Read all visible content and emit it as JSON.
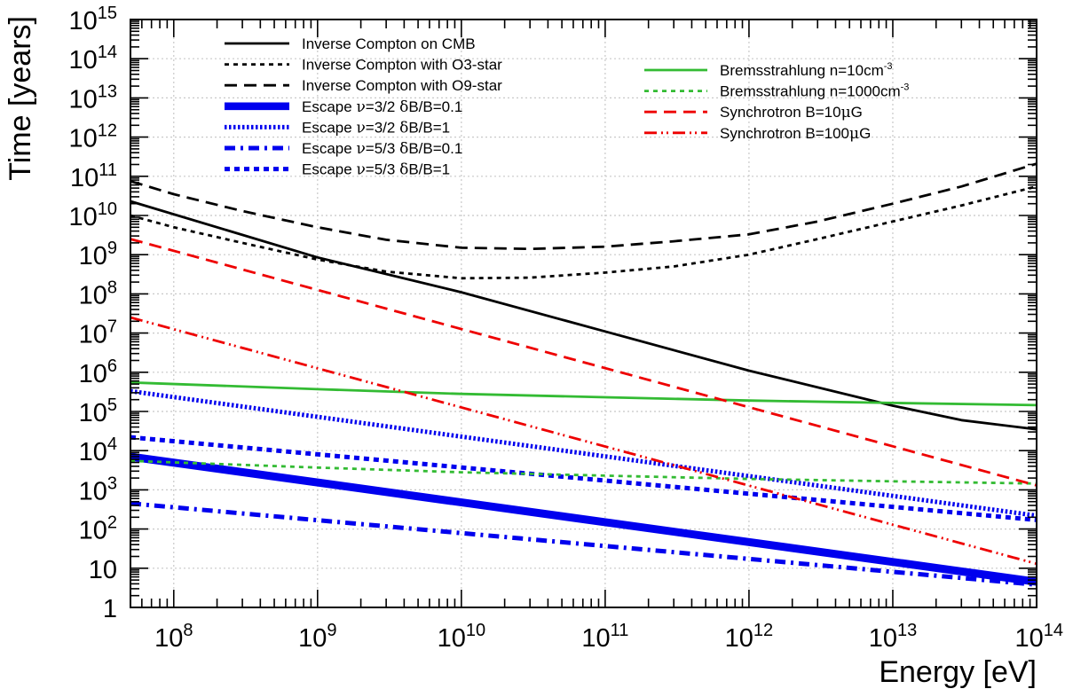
{
  "chart_data": {
    "type": "line",
    "title": "",
    "xlabel": "Energy [eV]",
    "ylabel": "Time [years]",
    "xscale": "log",
    "yscale": "log",
    "xlim": [
      50000000.0,
      100000000000000.0
    ],
    "ylim": [
      1,
      1000000000000000.0
    ],
    "grid": true,
    "x_ticks": [
      {
        "value": 100000000.0,
        "base": "10",
        "exp": "8"
      },
      {
        "value": 1000000000.0,
        "base": "10",
        "exp": "9"
      },
      {
        "value": 10000000000.0,
        "base": "10",
        "exp": "10"
      },
      {
        "value": 100000000000.0,
        "base": "10",
        "exp": "11"
      },
      {
        "value": 1000000000000.0,
        "base": "10",
        "exp": "12"
      },
      {
        "value": 10000000000000.0,
        "base": "10",
        "exp": "13"
      },
      {
        "value": 100000000000000.0,
        "base": "10",
        "exp": "14"
      }
    ],
    "y_ticks": [
      {
        "value": 1,
        "base": "1",
        "exp": ""
      },
      {
        "value": 10,
        "base": "10",
        "exp": ""
      },
      {
        "value": 100.0,
        "base": "10",
        "exp": "2"
      },
      {
        "value": 1000.0,
        "base": "10",
        "exp": "3"
      },
      {
        "value": 10000.0,
        "base": "10",
        "exp": "4"
      },
      {
        "value": 100000.0,
        "base": "10",
        "exp": "5"
      },
      {
        "value": 1000000.0,
        "base": "10",
        "exp": "6"
      },
      {
        "value": 10000000.0,
        "base": "10",
        "exp": "7"
      },
      {
        "value": 100000000.0,
        "base": "10",
        "exp": "8"
      },
      {
        "value": 1000000000.0,
        "base": "10",
        "exp": "9"
      },
      {
        "value": 10000000000.0,
        "base": "10",
        "exp": "10"
      },
      {
        "value": 100000000000.0,
        "base": "10",
        "exp": "11"
      },
      {
        "value": 1000000000000.0,
        "base": "10",
        "exp": "12"
      },
      {
        "value": 10000000000000.0,
        "base": "10",
        "exp": "13"
      },
      {
        "value": 100000000000000.0,
        "base": "10",
        "exp": "14"
      },
      {
        "value": 1000000000000000.0,
        "base": "10",
        "exp": "15"
      }
    ],
    "legend": {
      "left": [
        "ic-cmb",
        "ic-o3",
        "ic-o9",
        "esc-32-01",
        "esc-32-1",
        "esc-53-01",
        "esc-53-1"
      ],
      "right": [
        "brems-10",
        "brems-1000",
        "sync-10",
        "sync-100"
      ]
    },
    "series": [
      {
        "id": "ic-cmb",
        "name": "Inverse Compton on CMB",
        "label": [
          {
            "t": "Inverse Compton on CMB"
          }
        ],
        "color": "#000000",
        "style": "solid",
        "weight": "thin",
        "x": [
          50000000.0,
          1000000000.0,
          10000000000.0,
          100000000000.0,
          1000000000000.0,
          10000000000000.0,
          30000000000000.0,
          100000000000000.0
        ],
        "y": [
          23000000000.0,
          850000000.0,
          110000000.0,
          11000000.0,
          1100000.0,
          140000.0,
          60000.0,
          35000.0
        ]
      },
      {
        "id": "ic-o3",
        "name": "Inverse Compton with O3-star",
        "label": [
          {
            "t": "Inverse Compton with O3-star"
          }
        ],
        "color": "#000000",
        "style": "dotted",
        "weight": "thin",
        "x": [
          50000000.0,
          100000000.0,
          300000000.0,
          1000000000.0,
          3000000000.0,
          10000000000.0,
          30000000000.0,
          100000000000.0,
          300000000000.0,
          1000000000000.0,
          3000000000000.0,
          10000000000000.0,
          30000000000000.0,
          100000000000000.0
        ],
        "y": [
          10000000000.0,
          5000000000.0,
          2000000000.0,
          750000000.0,
          370000000.0,
          250000000.0,
          260000000.0,
          350000000.0,
          500000000.0,
          1000000000.0,
          2500000000.0,
          7000000000.0,
          18000000000.0,
          55000000000.0
        ]
      },
      {
        "id": "ic-o9",
        "name": "Inverse Compton with O9-star",
        "label": [
          {
            "t": "Inverse Compton with O9-star"
          }
        ],
        "color": "#000000",
        "style": "dashed",
        "weight": "thin",
        "x": [
          50000000.0,
          100000000.0,
          300000000.0,
          1000000000.0,
          3000000000.0,
          10000000000.0,
          30000000000.0,
          100000000000.0,
          300000000000.0,
          1000000000000.0,
          3000000000000.0,
          10000000000000.0,
          30000000000000.0,
          100000000000000.0
        ],
        "y": [
          75000000000.0,
          35000000000.0,
          13000000000.0,
          5000000000.0,
          2400000000.0,
          1500000000.0,
          1400000000.0,
          1600000000.0,
          2200000000.0,
          3300000000.0,
          7000000000.0,
          20000000000.0,
          55000000000.0,
          210000000000.0
        ]
      },
      {
        "id": "esc-32-01",
        "name": "Escape ν=3/2 δB/B=0.1",
        "label": [
          {
            "t": "Escape "
          },
          {
            "t": "ν",
            "greek": true
          },
          {
            "t": "=3/2 "
          },
          {
            "t": "δ",
            "greek": true
          },
          {
            "t": "B/B=0.1"
          }
        ],
        "color": "#0000ee",
        "style": "solid",
        "weight": "thick",
        "x": [
          50000000.0,
          100000000000000.0
        ],
        "y": [
          7000.0,
          4.5
        ]
      },
      {
        "id": "esc-32-1",
        "name": "Escape ν=3/2 δB/B=1",
        "label": [
          {
            "t": "Escape "
          },
          {
            "t": "ν",
            "greek": true
          },
          {
            "t": "=3/2 "
          },
          {
            "t": "δ",
            "greek": true
          },
          {
            "t": "B/B=1"
          }
        ],
        "color": "#0000ee",
        "style": "finedot",
        "weight": "medium",
        "x": [
          50000000.0,
          100000000000000.0
        ],
        "y": [
          330000.0,
          220.0
        ]
      },
      {
        "id": "esc-53-01",
        "name": "Escape ν=5/3 δB/B=0.1",
        "label": [
          {
            "t": "Escape "
          },
          {
            "t": "ν",
            "greek": true
          },
          {
            "t": "=5/3 "
          },
          {
            "t": "δ",
            "greek": true
          },
          {
            "t": "B/B=0.1"
          }
        ],
        "color": "#0000ee",
        "style": "dashdot",
        "weight": "medium",
        "x": [
          50000000.0,
          100000000000000.0
        ],
        "y": [
          450.0,
          3.8
        ]
      },
      {
        "id": "esc-53-1",
        "name": "Escape ν=5/3 δB/B=1",
        "label": [
          {
            "t": "Escape "
          },
          {
            "t": "ν",
            "greek": true
          },
          {
            "t": "=5/3 "
          },
          {
            "t": "δ",
            "greek": true
          },
          {
            "t": "B/B=1"
          }
        ],
        "color": "#0000ee",
        "style": "squaredot",
        "weight": "medium",
        "x": [
          50000000.0,
          100000000000000.0
        ],
        "y": [
          22000.0,
          170.0
        ]
      },
      {
        "id": "brems-10",
        "name": "Bremsstrahlung n=10cm-3",
        "label": [
          {
            "t": "Bremsstrahlung n=10cm"
          },
          {
            "t": "-3",
            "sup": true
          }
        ],
        "color": "#33bb33",
        "style": "solid",
        "weight": "thin",
        "x": [
          50000000.0,
          1000000000.0,
          10000000000.0,
          100000000000.0,
          1000000000000.0,
          10000000000000.0,
          100000000000000.0
        ],
        "y": [
          550000.0,
          370000.0,
          280000.0,
          230000.0,
          190000.0,
          165000.0,
          145000.0
        ]
      },
      {
        "id": "brems-1000",
        "name": "Bremsstrahlung n=1000cm-3",
        "label": [
          {
            "t": "Bremsstrahlung n=1000cm"
          },
          {
            "t": "-3",
            "sup": true
          }
        ],
        "color": "#33bb33",
        "style": "dotted",
        "weight": "thin",
        "x": [
          50000000.0,
          1000000000.0,
          10000000000.0,
          100000000000.0,
          1000000000000.0,
          10000000000000.0,
          100000000000000.0
        ],
        "y": [
          5500.0,
          3700.0,
          2800.0,
          2300.0,
          1900.0,
          1650.0,
          1450.0
        ]
      },
      {
        "id": "sync-10",
        "name": "Synchrotron B=10μG",
        "label": [
          {
            "t": "Synchrotron B=10"
          },
          {
            "t": "μ",
            "greek": true
          },
          {
            "t": "G"
          }
        ],
        "color": "#ee0000",
        "style": "dashed",
        "weight": "thin",
        "x": [
          50000000.0,
          100000000000000.0
        ],
        "y": [
          2500000000.0,
          1300.0
        ]
      },
      {
        "id": "sync-100",
        "name": "Synchrotron B=100μG",
        "label": [
          {
            "t": "Synchrotron B=100"
          },
          {
            "t": "μ",
            "greek": true
          },
          {
            "t": "G"
          }
        ],
        "color": "#ee0000",
        "style": "dashdotdot",
        "weight": "thin",
        "x": [
          50000000.0,
          100000000000000.0
        ],
        "y": [
          25000000.0,
          13
        ]
      }
    ]
  }
}
